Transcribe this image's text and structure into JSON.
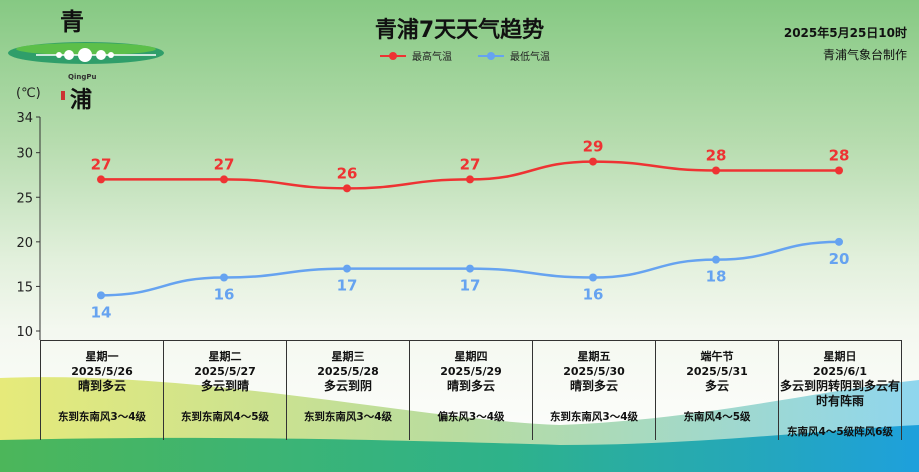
{
  "header": {
    "title": "青浦7天天气趋势",
    "issue_time": "2025年5月25日10时",
    "issuer": "青浦气象台制作",
    "logo_text": [
      "青",
      "浦",
      "QingPu"
    ]
  },
  "chart_data": {
    "type": "line",
    "title": "青浦7天天气趋势",
    "ylabel": "(℃)",
    "ylim": [
      10,
      34
    ],
    "yticks": [
      10,
      15,
      20,
      25,
      30,
      34
    ],
    "categories": [
      "2025/5/26",
      "2025/5/27",
      "2025/5/28",
      "2025/5/29",
      "2025/5/30",
      "2025/5/31",
      "2025/6/1"
    ],
    "legend_position": "top-center",
    "series": [
      {
        "name": "最高气温",
        "color": "#ee3333",
        "values": [
          27,
          27,
          26,
          27,
          29,
          28,
          28
        ]
      },
      {
        "name": "最低气温",
        "color": "#66a3f0",
        "values": [
          14,
          16,
          17,
          17,
          16,
          18,
          20
        ]
      }
    ]
  },
  "days": [
    {
      "weekday": "星期一",
      "date": "2025/5/26",
      "weather": "晴到多云",
      "wind": "东到东南风3～4级"
    },
    {
      "weekday": "星期二",
      "date": "2025/5/27",
      "weather": "多云到晴",
      "wind": "东到东南风4～5级"
    },
    {
      "weekday": "星期三",
      "date": "2025/5/28",
      "weather": "多云到阴",
      "wind": "东到东南风3～4级"
    },
    {
      "weekday": "星期四",
      "date": "2025/5/29",
      "weather": "晴到多云",
      "wind": "偏东风3～4级"
    },
    {
      "weekday": "星期五",
      "date": "2025/5/30",
      "weather": "晴到多云",
      "wind": "东到东南风3～4级"
    },
    {
      "weekday": "端午节",
      "date": "2025/5/31",
      "weather": "多云",
      "wind": "东南风4～5级"
    },
    {
      "weekday": "星期日",
      "date": "2025/6/1",
      "weather": "多云到阴转阴到多云有时有阵雨",
      "wind": "东南风4～5级阵风6级"
    }
  ]
}
